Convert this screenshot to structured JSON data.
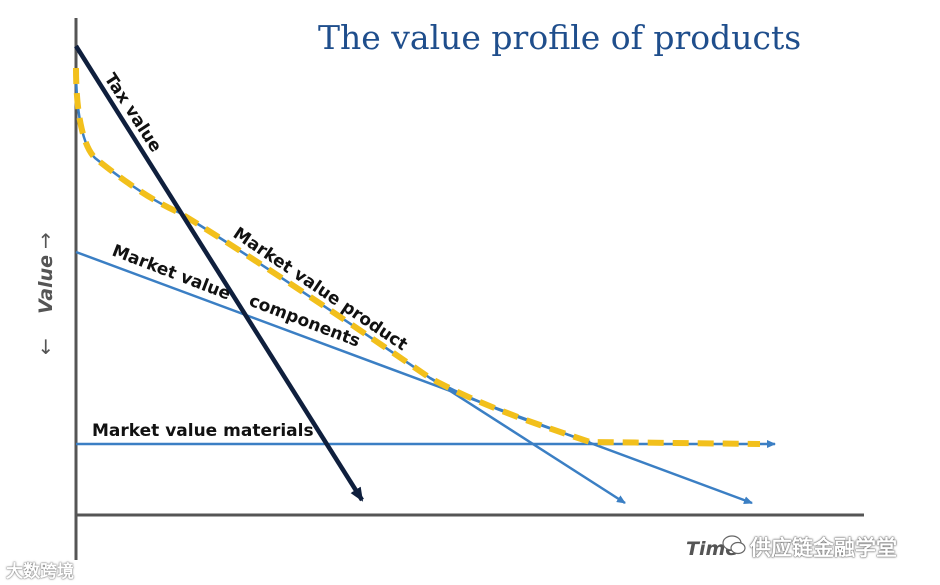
{
  "title": "The value profile of products",
  "y_axis_label": "Value",
  "x_axis_label": "Time",
  "series_labels": {
    "tax": "Tax value",
    "product": "Market value product",
    "components_line1": "Market value",
    "components_line2": "components",
    "materials": "Market value materials"
  },
  "watermarks": {
    "left": "大数跨境",
    "right": "供应链金融学堂"
  },
  "colors": {
    "title": "#1f4e8c",
    "axis": "#555555",
    "tax": "#0f1f3d",
    "blue_line": "#3b7fc4",
    "dash": "#f2c01c"
  }
}
